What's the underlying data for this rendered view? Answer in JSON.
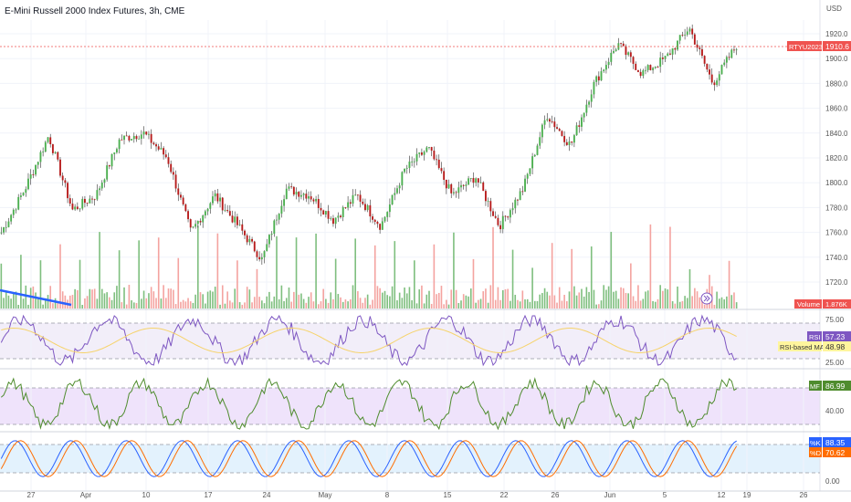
{
  "header": {
    "title": "E-Mini Russell 2000 Index Futures, 3h, CME",
    "currency": "USD"
  },
  "colors": {
    "up": "#26a69a",
    "up_vol": "#7fbf7f",
    "down": "#ef5350",
    "down_vol": "#f4a3a0",
    "rsi": "#7e57c2",
    "rsi_ma": "#f6d36b",
    "mf": "#4f8c2e",
    "k": "#2962ff",
    "d": "#ff6d00",
    "trend": "#2962ff",
    "grid": "#f0f3fa",
    "axis_text": "#555555"
  },
  "price_badge": {
    "symbol": "RTYU2023",
    "value": "1910.6"
  },
  "volume_badge": {
    "label": "Volume",
    "value": "1.876K"
  },
  "chart_data": [
    {
      "type": "candlestick",
      "title": "E-Mini Russell 2000 Index Futures, 3h, CME",
      "ylabel": "USD",
      "ylim": [
        1700,
        1930
      ],
      "yticks": [
        "1920.0",
        "1900.0",
        "1880.0",
        "1860.0",
        "1840.0",
        "1820.0",
        "1800.0",
        "1780.0",
        "1760.0",
        "1740.0",
        "1720.0"
      ],
      "xticks": [
        "27",
        "Apr",
        "10",
        "17",
        "24",
        "May",
        "8",
        "15",
        "22",
        "26",
        "Jun",
        "5",
        "12",
        "19",
        "26"
      ],
      "series": [
        {
          "name": "Price",
          "key_points": [
            {
              "x": "Mar 24",
              "close": 1760
            },
            {
              "x": "Mar 28",
              "close": 1795
            },
            {
              "x": "Mar 31",
              "close": 1838
            },
            {
              "x": "Apr 6",
              "close": 1778
            },
            {
              "x": "Apr 10",
              "close": 1790
            },
            {
              "x": "Apr 13",
              "close": 1835
            },
            {
              "x": "Apr 17",
              "close": 1840
            },
            {
              "x": "Apr 20",
              "close": 1820
            },
            {
              "x": "Apr 24",
              "close": 1760
            },
            {
              "x": "Apr 27",
              "close": 1790
            },
            {
              "x": "May 1",
              "close": 1765
            },
            {
              "x": "May 3",
              "close": 1738
            },
            {
              "x": "May 5",
              "close": 1795
            },
            {
              "x": "May 9",
              "close": 1790
            },
            {
              "x": "May 12",
              "close": 1770
            },
            {
              "x": "May 16",
              "close": 1790
            },
            {
              "x": "May 19",
              "close": 1765
            },
            {
              "x": "May 22",
              "close": 1810
            },
            {
              "x": "May 25",
              "close": 1828
            },
            {
              "x": "May 29",
              "close": 1790
            },
            {
              "x": "Jun 1",
              "close": 1805
            },
            {
              "x": "Jun 5",
              "close": 1765
            },
            {
              "x": "Jun 6",
              "close": 1795
            },
            {
              "x": "Jun 7",
              "close": 1855
            },
            {
              "x": "Jun 8",
              "close": 1830
            },
            {
              "x": "Jun 9",
              "close": 1880
            },
            {
              "x": "Jun 12",
              "close": 1912
            },
            {
              "x": "Jun 14",
              "close": 1888
            },
            {
              "x": "Jun 16",
              "close": 1900
            },
            {
              "x": "Jun 19",
              "close": 1925
            },
            {
              "x": "Jun 20",
              "close": 1880
            },
            {
              "x": "Jun 22",
              "close": 1910.6
            }
          ]
        }
      ],
      "annotations": [
        "RTYU2023 1910.6"
      ]
    },
    {
      "type": "bar",
      "name": "Volume",
      "last": "1.876K"
    },
    {
      "type": "line",
      "name": "RSI",
      "yticks": [
        "75.00",
        "50.00",
        "25.00"
      ],
      "bands": [
        70,
        30
      ],
      "series": [
        {
          "name": "RSI",
          "last": "57.23"
        },
        {
          "name": "RSI-based MA",
          "last": "48.98"
        }
      ]
    },
    {
      "type": "line",
      "name": "MF",
      "yticks": [
        "40.00"
      ],
      "bands": [
        80,
        20
      ],
      "series": [
        {
          "name": "MF",
          "last": "86.99"
        }
      ]
    },
    {
      "type": "line",
      "name": "Stoch",
      "yticks": [
        "0.00"
      ],
      "bands": [
        80,
        20
      ],
      "series": [
        {
          "name": "%K",
          "last": "88.35"
        },
        {
          "name": "%D",
          "last": "70.62"
        }
      ]
    }
  ],
  "indicators": {
    "rsi": {
      "label": "RSI",
      "value": "57.23",
      "ma_label": "RSI-based MA",
      "ma_value": "48.98",
      "ticks": [
        "75.00",
        "50.00",
        "25.00"
      ]
    },
    "mf": {
      "label": "MF",
      "value": "86.99",
      "ticks": [
        "40.00"
      ]
    },
    "stoch": {
      "k_label": "%K",
      "k_value": "88.35",
      "d_label": "%D",
      "d_value": "70.62",
      "ticks": [
        "0.00"
      ]
    }
  }
}
